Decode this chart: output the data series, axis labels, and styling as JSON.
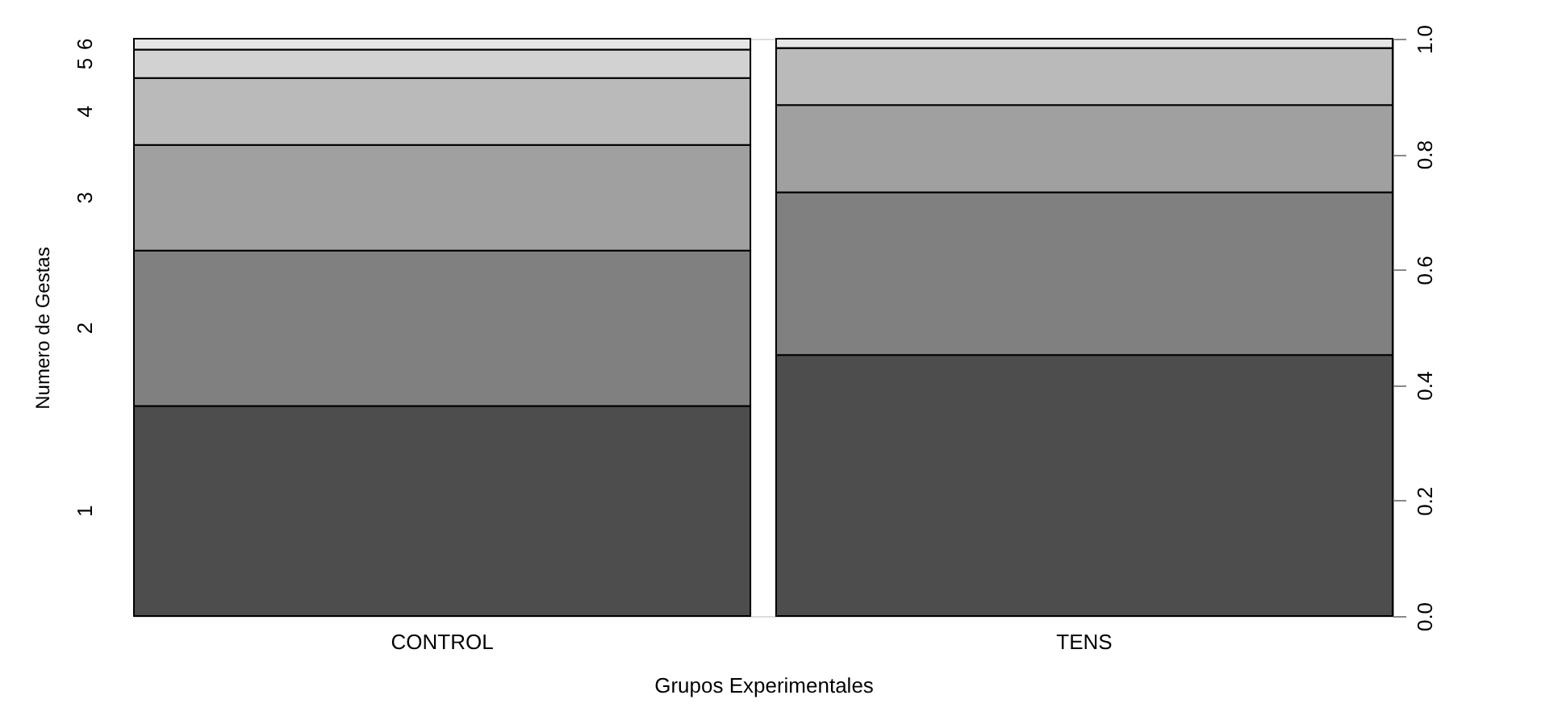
{
  "chart_data": {
    "type": "bar",
    "stacked": true,
    "xlabel": "Grupos Experimentales",
    "ylabel": "Numero de Gestas",
    "categories": [
      "CONTROL",
      "TENS"
    ],
    "series": [
      {
        "name": "1",
        "color": "#4d4d4d",
        "values": [
          0.364,
          0.452
        ]
      },
      {
        "name": "2",
        "color": "#808080",
        "values": [
          0.269,
          0.282
        ]
      },
      {
        "name": "3",
        "color": "#a0a0a0",
        "values": [
          0.183,
          0.151
        ]
      },
      {
        "name": "4",
        "color": "#bababa",
        "values": [
          0.116,
          0.099
        ]
      },
      {
        "name": "5",
        "color": "#d2d2d2",
        "values": [
          0.049,
          0
        ]
      },
      {
        "name": "6",
        "color": "#e6e6e6",
        "values": [
          0.019,
          0.016
        ]
      }
    ],
    "ylim": [
      0,
      1
    ],
    "yticks": [
      {
        "value": 0,
        "label": "0.0"
      },
      {
        "value": 0.2,
        "label": "0.2"
      },
      {
        "value": 0.4,
        "label": "0.4"
      },
      {
        "value": 0.6,
        "label": "0.6"
      },
      {
        "value": 0.8,
        "label": "0.8"
      },
      {
        "value": 1,
        "label": "1.0"
      }
    ],
    "grid": false,
    "legend": false
  }
}
